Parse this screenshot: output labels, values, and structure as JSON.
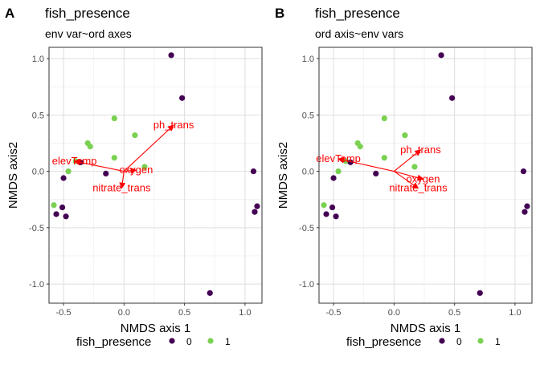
{
  "figure": {
    "legend": {
      "title": "fish_presence",
      "items": [
        {
          "label": "0",
          "color": "#440154"
        },
        {
          "label": "1",
          "color": "#7AD151"
        }
      ]
    }
  },
  "chart_data": [
    {
      "type": "scatter",
      "panel_label": "A",
      "title": "fish_presence",
      "subtitle": "env var~ord axes",
      "xlabel": "NMDS axis 1",
      "ylabel": "NMDS axis2",
      "xlim": [
        -0.62,
        1.14
      ],
      "ylim": [
        -1.17,
        1.1
      ],
      "x_ticks": [
        -0.5,
        0.0,
        0.5,
        1.0
      ],
      "x_tick_labels": [
        "-0.5",
        "0.0",
        "0.5",
        "1.0"
      ],
      "y_ticks": [
        -1.0,
        -0.5,
        0.0,
        0.5,
        1.0
      ],
      "y_tick_labels": [
        "-1.0",
        "-0.5",
        "0.0",
        "0.5",
        "1.0"
      ],
      "grid": true,
      "legend_position": "bottom",
      "point_colors": {
        "0": "#440154",
        "1": "#7AD151"
      },
      "points": [
        {
          "x": 0.39,
          "y": 1.03,
          "group": "0"
        },
        {
          "x": 0.48,
          "y": 0.65,
          "group": "0"
        },
        {
          "x": -0.08,
          "y": 0.47,
          "group": "1"
        },
        {
          "x": 0.09,
          "y": 0.32,
          "group": "1"
        },
        {
          "x": -0.3,
          "y": 0.25,
          "group": "1"
        },
        {
          "x": -0.28,
          "y": 0.22,
          "group": "1"
        },
        {
          "x": -0.08,
          "y": 0.12,
          "group": "1"
        },
        {
          "x": -0.4,
          "y": 0.09,
          "group": "1"
        },
        {
          "x": -0.36,
          "y": 0.08,
          "group": "0"
        },
        {
          "x": 0.17,
          "y": 0.04,
          "group": "1"
        },
        {
          "x": -0.46,
          "y": 0.0,
          "group": "1"
        },
        {
          "x": -0.15,
          "y": -0.02,
          "group": "0"
        },
        {
          "x": -0.5,
          "y": -0.06,
          "group": "0"
        },
        {
          "x": -0.58,
          "y": -0.3,
          "group": "1"
        },
        {
          "x": -0.51,
          "y": -0.32,
          "group": "0"
        },
        {
          "x": -0.56,
          "y": -0.38,
          "group": "0"
        },
        {
          "x": -0.48,
          "y": -0.4,
          "group": "0"
        },
        {
          "x": 1.07,
          "y": 0.0,
          "group": "0"
        },
        {
          "x": 1.1,
          "y": -0.31,
          "group": "0"
        },
        {
          "x": 1.08,
          "y": -0.36,
          "group": "0"
        },
        {
          "x": 0.71,
          "y": -1.08,
          "group": "0"
        }
      ],
      "vectors": [
        {
          "name": "ph_trans",
          "x": 0.41,
          "y": 0.41
        },
        {
          "name": "elevTemp",
          "x": -0.41,
          "y": 0.09
        },
        {
          "name": "oxygen",
          "x": 0.1,
          "y": 0.01
        },
        {
          "name": "nitrate_trans",
          "x": -0.02,
          "y": -0.15
        }
      ],
      "vector_color": "#FF0000"
    },
    {
      "type": "scatter",
      "panel_label": "B",
      "title": "fish_presence",
      "subtitle": "ord axis~env vars",
      "xlabel": "NMDS axis 1",
      "ylabel": "NMDS axis2",
      "xlim": [
        -0.62,
        1.14
      ],
      "ylim": [
        -1.17,
        1.1
      ],
      "x_ticks": [
        -0.5,
        0.0,
        0.5,
        1.0
      ],
      "x_tick_labels": [
        "-0.5",
        "0.0",
        "0.5",
        "1.0"
      ],
      "y_ticks": [
        -1.0,
        -0.5,
        0.0,
        0.5,
        1.0
      ],
      "y_tick_labels": [
        "-1.0",
        "-0.5",
        "0.0",
        "0.5",
        "1.0"
      ],
      "grid": true,
      "legend_position": "bottom",
      "point_colors": {
        "0": "#440154",
        "1": "#7AD151"
      },
      "points": [
        {
          "x": 0.39,
          "y": 1.03,
          "group": "0"
        },
        {
          "x": 0.48,
          "y": 0.65,
          "group": "0"
        },
        {
          "x": -0.08,
          "y": 0.47,
          "group": "1"
        },
        {
          "x": 0.09,
          "y": 0.32,
          "group": "1"
        },
        {
          "x": -0.3,
          "y": 0.25,
          "group": "1"
        },
        {
          "x": -0.28,
          "y": 0.22,
          "group": "1"
        },
        {
          "x": -0.08,
          "y": 0.12,
          "group": "1"
        },
        {
          "x": -0.4,
          "y": 0.09,
          "group": "1"
        },
        {
          "x": -0.36,
          "y": 0.08,
          "group": "0"
        },
        {
          "x": 0.17,
          "y": 0.04,
          "group": "1"
        },
        {
          "x": -0.46,
          "y": 0.0,
          "group": "1"
        },
        {
          "x": -0.15,
          "y": -0.02,
          "group": "0"
        },
        {
          "x": -0.5,
          "y": -0.06,
          "group": "0"
        },
        {
          "x": -0.58,
          "y": -0.3,
          "group": "1"
        },
        {
          "x": -0.51,
          "y": -0.32,
          "group": "0"
        },
        {
          "x": -0.56,
          "y": -0.38,
          "group": "0"
        },
        {
          "x": -0.48,
          "y": -0.4,
          "group": "0"
        },
        {
          "x": 1.07,
          "y": 0.0,
          "group": "0"
        },
        {
          "x": 1.1,
          "y": -0.31,
          "group": "0"
        },
        {
          "x": 1.08,
          "y": -0.36,
          "group": "0"
        },
        {
          "x": 0.71,
          "y": -1.08,
          "group": "0"
        }
      ],
      "vectors": [
        {
          "name": "ph_trans",
          "x": 0.22,
          "y": 0.19
        },
        {
          "name": "elevTemp",
          "x": -0.46,
          "y": 0.11
        },
        {
          "name": "oxygen",
          "x": 0.24,
          "y": -0.07
        },
        {
          "name": "nitrate_trans",
          "x": 0.2,
          "y": -0.15
        }
      ],
      "vector_color": "#FF0000"
    }
  ]
}
